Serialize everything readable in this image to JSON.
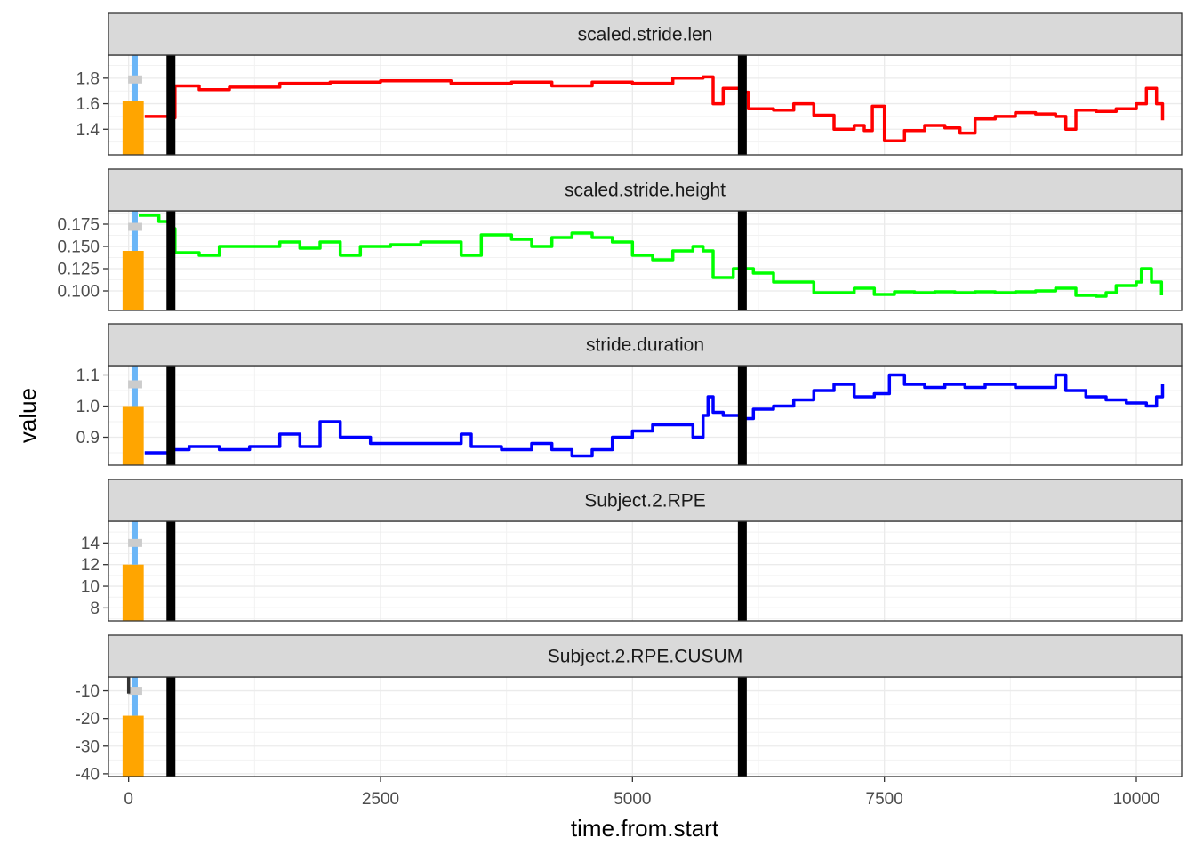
{
  "chart_data": {
    "type": "line",
    "x_label": "time.from.start",
    "y_label": "value",
    "x_range": [
      -200,
      10450
    ],
    "x_ticks": [
      0,
      2500,
      5000,
      7500,
      10000
    ],
    "x_tick_labels": [
      "0",
      "2500",
      "5000",
      "7500",
      "10000"
    ],
    "grid": true,
    "vertical_markers": [
      420,
      6090
    ],
    "marker_color": "#000000",
    "overlay_bar": {
      "x_from": -60,
      "x_to": 150,
      "color": "#FFA500"
    },
    "overlay_blue": {
      "x": 60,
      "color": "#6BB6F7"
    },
    "overlay_gray": {
      "x_from": -5,
      "x_to": 135,
      "color": "#CCCCCC"
    },
    "facets": [
      {
        "label": "scaled.stride.len",
        "color": "#FF0000",
        "y_range": [
          1.2,
          1.98
        ],
        "y_ticks": [
          1.4,
          1.6,
          1.8
        ],
        "y_tick_labels": [
          "1.4",
          "1.6",
          "1.8"
        ],
        "bar_top": 1.62,
        "gray_y": 1.79,
        "points": [
          [
            160,
            1.5
          ],
          [
            300,
            1.5
          ],
          [
            430,
            1.49
          ],
          [
            460,
            1.74
          ],
          [
            700,
            1.71
          ],
          [
            1000,
            1.73
          ],
          [
            1500,
            1.76
          ],
          [
            2000,
            1.77
          ],
          [
            2500,
            1.78
          ],
          [
            3200,
            1.76
          ],
          [
            3800,
            1.77
          ],
          [
            4200,
            1.74
          ],
          [
            4600,
            1.77
          ],
          [
            5000,
            1.76
          ],
          [
            5400,
            1.8
          ],
          [
            5700,
            1.81
          ],
          [
            5800,
            1.6
          ],
          [
            5900,
            1.72
          ],
          [
            6100,
            1.69
          ],
          [
            6150,
            1.56
          ],
          [
            6400,
            1.55
          ],
          [
            6600,
            1.6
          ],
          [
            6800,
            1.51
          ],
          [
            7000,
            1.4
          ],
          [
            7200,
            1.43
          ],
          [
            7300,
            1.39
          ],
          [
            7380,
            1.58
          ],
          [
            7500,
            1.31
          ],
          [
            7700,
            1.39
          ],
          [
            7900,
            1.43
          ],
          [
            8100,
            1.41
          ],
          [
            8250,
            1.37
          ],
          [
            8400,
            1.48
          ],
          [
            8600,
            1.5
          ],
          [
            8800,
            1.53
          ],
          [
            9000,
            1.52
          ],
          [
            9200,
            1.5
          ],
          [
            9300,
            1.4
          ],
          [
            9400,
            1.55
          ],
          [
            9600,
            1.54
          ],
          [
            9800,
            1.56
          ],
          [
            10000,
            1.6
          ],
          [
            10100,
            1.72
          ],
          [
            10200,
            1.6
          ],
          [
            10260,
            1.47
          ]
        ]
      },
      {
        "label": "scaled.stride.height",
        "color": "#00FF00",
        "y_range": [
          0.078,
          0.19
        ],
        "y_ticks": [
          0.1,
          0.125,
          0.15,
          0.175
        ],
        "y_tick_labels": [
          "0.100",
          "0.125",
          "0.150",
          "0.175"
        ],
        "bar_top": 0.145,
        "gray_y": 0.172,
        "points": [
          [
            100,
            0.185
          ],
          [
            300,
            0.178
          ],
          [
            420,
            0.17
          ],
          [
            460,
            0.143
          ],
          [
            700,
            0.14
          ],
          [
            900,
            0.15
          ],
          [
            1200,
            0.15
          ],
          [
            1500,
            0.155
          ],
          [
            1700,
            0.148
          ],
          [
            1900,
            0.155
          ],
          [
            2100,
            0.14
          ],
          [
            2300,
            0.15
          ],
          [
            2600,
            0.152
          ],
          [
            2900,
            0.155
          ],
          [
            3100,
            0.155
          ],
          [
            3300,
            0.14
          ],
          [
            3500,
            0.163
          ],
          [
            3800,
            0.158
          ],
          [
            4000,
            0.15
          ],
          [
            4200,
            0.16
          ],
          [
            4400,
            0.165
          ],
          [
            4600,
            0.16
          ],
          [
            4800,
            0.155
          ],
          [
            5000,
            0.14
          ],
          [
            5200,
            0.135
          ],
          [
            5400,
            0.145
          ],
          [
            5600,
            0.15
          ],
          [
            5700,
            0.145
          ],
          [
            5800,
            0.115
          ],
          [
            6000,
            0.125
          ],
          [
            6090,
            0.125
          ],
          [
            6200,
            0.12
          ],
          [
            6400,
            0.11
          ],
          [
            6600,
            0.11
          ],
          [
            6800,
            0.098
          ],
          [
            7000,
            0.098
          ],
          [
            7200,
            0.103
          ],
          [
            7400,
            0.096
          ],
          [
            7600,
            0.099
          ],
          [
            7800,
            0.098
          ],
          [
            8000,
            0.099
          ],
          [
            8200,
            0.098
          ],
          [
            8400,
            0.099
          ],
          [
            8600,
            0.098
          ],
          [
            8800,
            0.099
          ],
          [
            9000,
            0.1
          ],
          [
            9200,
            0.103
          ],
          [
            9400,
            0.095
          ],
          [
            9600,
            0.094
          ],
          [
            9700,
            0.098
          ],
          [
            9800,
            0.106
          ],
          [
            10000,
            0.11
          ],
          [
            10050,
            0.125
          ],
          [
            10150,
            0.11
          ],
          [
            10250,
            0.095
          ]
        ]
      },
      {
        "label": "stride.duration",
        "color": "#0000FF",
        "y_range": [
          0.81,
          1.13
        ],
        "y_ticks": [
          0.9,
          1.0,
          1.1
        ],
        "y_tick_labels": [
          "0.9",
          "1.0",
          "1.1"
        ],
        "bar_top": 1.0,
        "gray_y": 1.07,
        "points": [
          [
            160,
            0.85
          ],
          [
            420,
            0.86
          ],
          [
            600,
            0.87
          ],
          [
            900,
            0.86
          ],
          [
            1200,
            0.87
          ],
          [
            1500,
            0.91
          ],
          [
            1700,
            0.87
          ],
          [
            1900,
            0.95
          ],
          [
            2100,
            0.9
          ],
          [
            2400,
            0.88
          ],
          [
            2700,
            0.88
          ],
          [
            3000,
            0.88
          ],
          [
            3200,
            0.88
          ],
          [
            3300,
            0.91
          ],
          [
            3400,
            0.87
          ],
          [
            3700,
            0.86
          ],
          [
            4000,
            0.88
          ],
          [
            4200,
            0.86
          ],
          [
            4400,
            0.84
          ],
          [
            4600,
            0.86
          ],
          [
            4800,
            0.9
          ],
          [
            5000,
            0.92
          ],
          [
            5200,
            0.94
          ],
          [
            5400,
            0.94
          ],
          [
            5600,
            0.9
          ],
          [
            5700,
            0.97
          ],
          [
            5750,
            1.03
          ],
          [
            5800,
            0.98
          ],
          [
            5900,
            0.97
          ],
          [
            6000,
            0.97
          ],
          [
            6090,
            0.96
          ],
          [
            6200,
            0.99
          ],
          [
            6400,
            1.0
          ],
          [
            6600,
            1.02
          ],
          [
            6800,
            1.05
          ],
          [
            7000,
            1.07
          ],
          [
            7200,
            1.03
          ],
          [
            7400,
            1.04
          ],
          [
            7550,
            1.1
          ],
          [
            7700,
            1.07
          ],
          [
            7900,
            1.06
          ],
          [
            8100,
            1.07
          ],
          [
            8300,
            1.06
          ],
          [
            8500,
            1.07
          ],
          [
            8800,
            1.06
          ],
          [
            9000,
            1.06
          ],
          [
            9200,
            1.1
          ],
          [
            9300,
            1.05
          ],
          [
            9500,
            1.03
          ],
          [
            9700,
            1.02
          ],
          [
            9900,
            1.01
          ],
          [
            10100,
            1.0
          ],
          [
            10200,
            1.03
          ],
          [
            10260,
            1.07
          ]
        ]
      },
      {
        "label": "Subject.2.RPE",
        "color": "#808080",
        "y_range": [
          6.8,
          16
        ],
        "y_ticks": [
          8,
          10,
          12,
          14
        ],
        "y_tick_labels": [
          "8",
          "10",
          "12",
          "14"
        ],
        "bar_top": 12,
        "gray_y": 14,
        "points": []
      },
      {
        "label": "Subject.2.RPE.CUSUM",
        "color": "#333333",
        "y_range": [
          -41,
          -5
        ],
        "y_ticks": [
          -40,
          -30,
          -20,
          -10
        ],
        "y_tick_labels": [
          "-40",
          "-30",
          "-20",
          "-10"
        ],
        "bar_top": -19,
        "gray_y": -10,
        "points": [
          [
            0,
            -5
          ],
          [
            0,
            -11
          ]
        ]
      }
    ]
  }
}
